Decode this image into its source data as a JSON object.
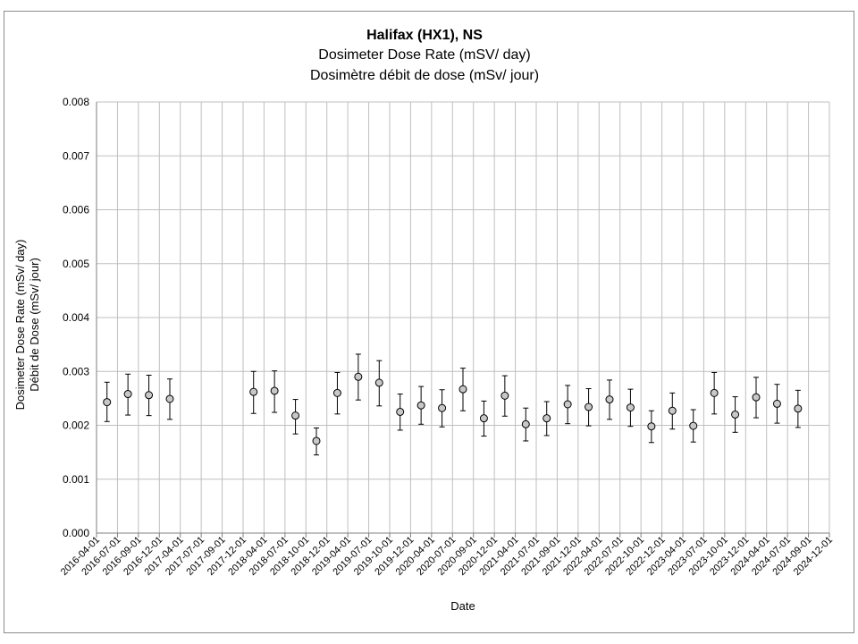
{
  "chart_data": {
    "type": "scatter",
    "title": "Halifax (HX1), NS",
    "subtitle_lines": [
      "Dosimeter Dose Rate (mSV/ day)",
      "Dosimètre débit de dose (mSv/ jour)"
    ],
    "xlabel": "Date",
    "ylabel_lines": [
      "Dosimeter Dose Rate (mSv/ day)",
      "Débit de Dose (mSv/ jour)"
    ],
    "ylim": [
      0,
      0.008
    ],
    "yticks": [
      "0.000",
      "0.001",
      "0.002",
      "0.003",
      "0.004",
      "0.005",
      "0.006",
      "0.007",
      "0.008"
    ],
    "ytick_values": [
      0,
      0.001,
      0.002,
      0.003,
      0.004,
      0.005,
      0.006,
      0.007,
      0.008
    ],
    "categories": [
      "2016-04-01",
      "2016-07-01",
      "2016-09-01",
      "2016-12-01",
      "2017-04-01",
      "2017-07-01",
      "2017-09-01",
      "2017-12-01",
      "2018-04-01",
      "2018-07-01",
      "2018-10-01",
      "2018-12-01",
      "2019-04-01",
      "2019-07-01",
      "2019-10-01",
      "2019-12-01",
      "2020-04-01",
      "2020-07-01",
      "2020-09-01",
      "2020-12-01",
      "2021-04-01",
      "2021-07-01",
      "2021-09-01",
      "2021-12-01",
      "2022-04-01",
      "2022-07-01",
      "2022-10-01",
      "2022-12-01",
      "2023-04-01",
      "2023-07-01",
      "2023-10-01",
      "2023-12-01",
      "2024-04-01",
      "2024-07-01",
      "2024-09-01",
      "2024-12-01"
    ],
    "series": [
      {
        "points": [
          {
            "x": 0.5,
            "y": 0.00243,
            "low": 0.00207,
            "high": 0.0028
          },
          {
            "x": 1.5,
            "y": 0.00258,
            "low": 0.00219,
            "high": 0.00295
          },
          {
            "x": 2.5,
            "y": 0.00256,
            "low": 0.00218,
            "high": 0.00293
          },
          {
            "x": 3.5,
            "y": 0.00249,
            "low": 0.00211,
            "high": 0.00286
          },
          {
            "x": 7.5,
            "y": 0.00262,
            "low": 0.00222,
            "high": 0.003
          },
          {
            "x": 8.5,
            "y": 0.00264,
            "low": 0.00224,
            "high": 0.00301
          },
          {
            "x": 9.5,
            "y": 0.00218,
            "low": 0.00184,
            "high": 0.00248
          },
          {
            "x": 10.5,
            "y": 0.00171,
            "low": 0.00145,
            "high": 0.00195
          },
          {
            "x": 11.5,
            "y": 0.0026,
            "low": 0.00221,
            "high": 0.00298
          },
          {
            "x": 12.5,
            "y": 0.0029,
            "low": 0.00247,
            "high": 0.00332
          },
          {
            "x": 13.5,
            "y": 0.00279,
            "low": 0.00236,
            "high": 0.0032
          },
          {
            "x": 14.5,
            "y": 0.00225,
            "low": 0.00191,
            "high": 0.00258
          },
          {
            "x": 15.5,
            "y": 0.00237,
            "low": 0.00202,
            "high": 0.00272
          },
          {
            "x": 16.5,
            "y": 0.00232,
            "low": 0.00197,
            "high": 0.00266
          },
          {
            "x": 17.5,
            "y": 0.00267,
            "low": 0.00227,
            "high": 0.00306
          },
          {
            "x": 18.5,
            "y": 0.00213,
            "low": 0.0018,
            "high": 0.00245
          },
          {
            "x": 19.5,
            "y": 0.00255,
            "low": 0.00217,
            "high": 0.00292
          },
          {
            "x": 20.5,
            "y": 0.00202,
            "low": 0.00171,
            "high": 0.00232
          },
          {
            "x": 21.5,
            "y": 0.00213,
            "low": 0.00181,
            "high": 0.00244
          },
          {
            "x": 22.5,
            "y": 0.00239,
            "low": 0.00203,
            "high": 0.00274
          },
          {
            "x": 23.5,
            "y": 0.00234,
            "low": 0.00199,
            "high": 0.00268
          },
          {
            "x": 24.5,
            "y": 0.00248,
            "low": 0.00211,
            "high": 0.00284
          },
          {
            "x": 25.5,
            "y": 0.00233,
            "low": 0.00198,
            "high": 0.00267
          },
          {
            "x": 26.5,
            "y": 0.00198,
            "low": 0.00168,
            "high": 0.00227
          },
          {
            "x": 27.5,
            "y": 0.00227,
            "low": 0.00193,
            "high": 0.0026
          },
          {
            "x": 28.5,
            "y": 0.00199,
            "low": 0.00169,
            "high": 0.00229
          },
          {
            "x": 29.5,
            "y": 0.0026,
            "low": 0.00221,
            "high": 0.00298
          },
          {
            "x": 30.5,
            "y": 0.0022,
            "low": 0.00187,
            "high": 0.00253
          },
          {
            "x": 31.5,
            "y": 0.00252,
            "low": 0.00214,
            "high": 0.00289
          },
          {
            "x": 32.5,
            "y": 0.0024,
            "low": 0.00204,
            "high": 0.00276
          },
          {
            "x": 33.5,
            "y": 0.00231,
            "low": 0.00196,
            "high": 0.00265
          }
        ]
      }
    ],
    "grid": true,
    "legend": false,
    "colors": {
      "marker_fill": "#c8c8c8",
      "marker_stroke": "#000000",
      "grid": "#bfbfbf",
      "axis": "#7f7f7f",
      "text": "#000000"
    }
  }
}
